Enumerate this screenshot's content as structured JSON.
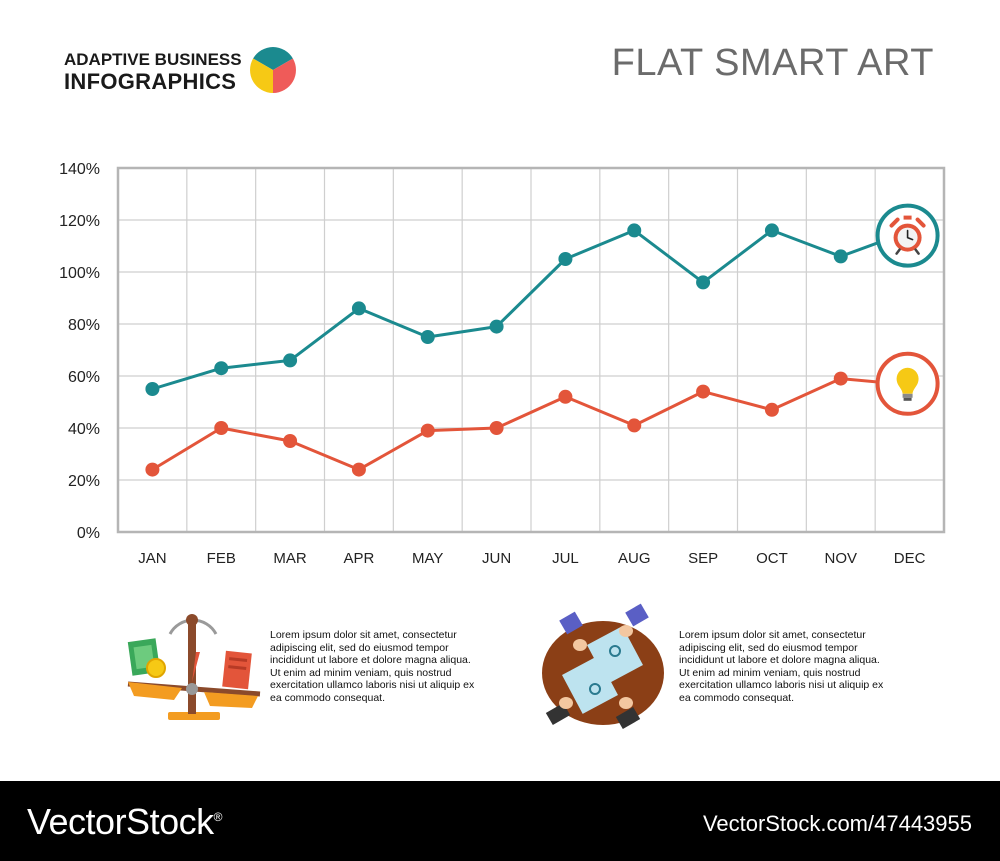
{
  "header": {
    "brand_line1": "ADAPTIVE BUSINESS",
    "brand_line2": "INFOGRAPHICS",
    "title": "FLAT SMART ART"
  },
  "colors": {
    "teal": "#1b8a8f",
    "orange": "#e3553a",
    "grid": "#cfcfcf",
    "frame": "#b5b5b5",
    "pie": [
      "#1b8a8f",
      "#f6c915",
      "#ef5b59"
    ]
  },
  "chart_data": {
    "type": "line",
    "title": "",
    "xlabel": "",
    "ylabel": "",
    "categories": [
      "JAN",
      "FEB",
      "MAR",
      "APR",
      "MAY",
      "JUN",
      "JUL",
      "AUG",
      "SEP",
      "OCT",
      "NOV",
      "DEC"
    ],
    "ylim": [
      0,
      140
    ],
    "yticks": [
      0,
      20,
      40,
      60,
      80,
      100,
      120,
      140
    ],
    "ytick_labels": [
      "0%",
      "20%",
      "40%",
      "60%",
      "80%",
      "100%",
      "120%",
      "140%"
    ],
    "grid": true,
    "series": [
      {
        "name": "timer",
        "color": "#1b8a8f",
        "icon": "alarm-clock-icon",
        "values": [
          55,
          63,
          66,
          86,
          75,
          79,
          105,
          116,
          96,
          116,
          106,
          114
        ]
      },
      {
        "name": "idea",
        "color": "#e3553a",
        "icon": "light-bulb-icon",
        "values": [
          24,
          40,
          35,
          24,
          39,
          40,
          52,
          41,
          54,
          47,
          59,
          57
        ]
      }
    ]
  },
  "blocks": {
    "left_text": "Lorem ipsum dolor sit amet, consectetur adipiscing elit, sed do eiusmod tempor incididunt ut labore et dolore magna aliqua. Ut enim ad minim veniam, quis nostrud exercitation ullamco laboris nisi ut aliquip ex ea commodo consequat.",
    "right_text": "Lorem ipsum dolor sit amet, consectetur adipiscing elit, sed do eiusmod tempor incididunt ut labore et dolore magna aliqua. Ut enim ad minim veniam, quis nostrud exercitation ullamco laboris nisi ut aliquip ex ea commodo consequat."
  },
  "footer": {
    "brand": "VectorStock",
    "registered": "®",
    "id_text": "VectorStock.com/47443955"
  }
}
